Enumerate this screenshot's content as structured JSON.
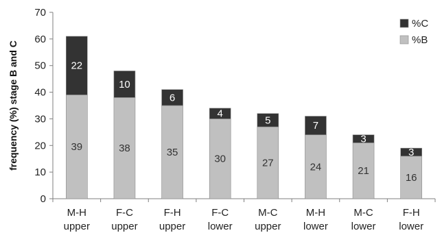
{
  "chart_data": {
    "type": "bar",
    "stacked": true,
    "title": "",
    "xlabel": "",
    "ylabel": "frequency (%) stage B and C",
    "ylim": [
      0,
      70
    ],
    "yticks": [
      0,
      10,
      20,
      30,
      40,
      50,
      60,
      70
    ],
    "grid": false,
    "legend_position": "top-right",
    "categories": [
      [
        "M-H",
        "upper"
      ],
      [
        "F-C",
        "upper"
      ],
      [
        "F-H",
        "upper"
      ],
      [
        "F-C",
        "lower"
      ],
      [
        "M-C",
        "upper"
      ],
      [
        "M-H",
        "lower"
      ],
      [
        "M-C",
        "lower"
      ],
      [
        "F-H",
        "lower"
      ]
    ],
    "series": [
      {
        "name": "%B",
        "color": "#c0c0c0",
        "label_color": "#333333",
        "values": [
          39,
          38,
          35,
          30,
          27,
          24,
          21,
          16
        ]
      },
      {
        "name": "%C",
        "color": "#333333",
        "label_color": "#ffffff",
        "values": [
          22,
          10,
          6,
          4,
          5,
          7,
          3,
          3
        ]
      }
    ],
    "legend": [
      {
        "name": "%C",
        "color": "#333333"
      },
      {
        "name": "%B",
        "color": "#c0c0c0"
      }
    ]
  }
}
